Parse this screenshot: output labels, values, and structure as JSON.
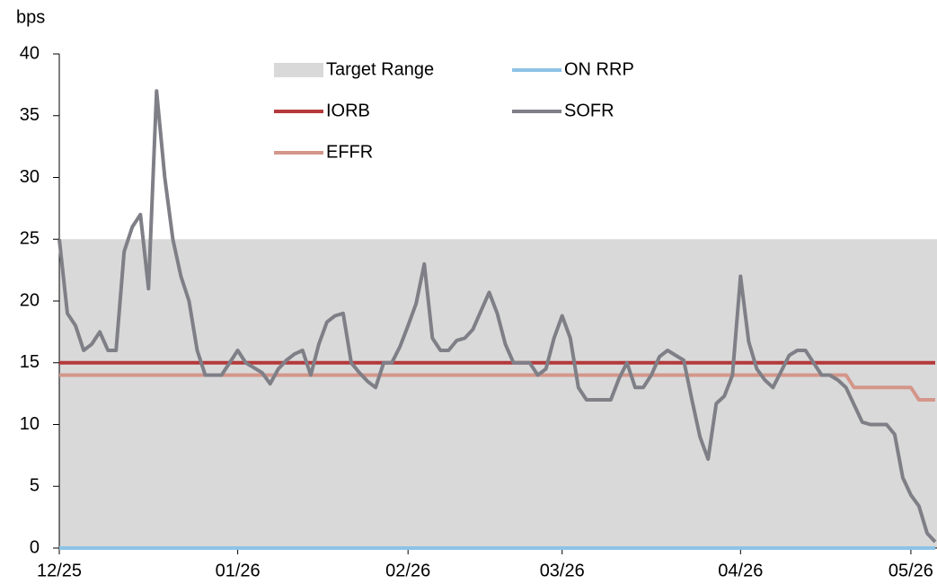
{
  "chart_data": {
    "type": "line",
    "y_label": "bps",
    "ylim": [
      0,
      40
    ],
    "yticks": [
      0,
      5,
      10,
      15,
      20,
      25,
      30,
      35,
      40
    ],
    "categories": [
      "12/25",
      null,
      null,
      null,
      null,
      null,
      null,
      null,
      null,
      null,
      null,
      null,
      null,
      null,
      null,
      null,
      null,
      null,
      null,
      null,
      null,
      null,
      "01/26",
      null,
      null,
      null,
      null,
      null,
      null,
      null,
      null,
      null,
      null,
      null,
      null,
      null,
      null,
      null,
      null,
      null,
      null,
      null,
      null,
      "02/26",
      null,
      null,
      null,
      null,
      null,
      null,
      null,
      null,
      null,
      null,
      null,
      null,
      null,
      null,
      null,
      null,
      null,
      null,
      "03/26",
      null,
      null,
      null,
      null,
      null,
      null,
      null,
      null,
      null,
      null,
      null,
      null,
      null,
      null,
      null,
      null,
      null,
      null,
      null,
      null,
      null,
      "04/26",
      null,
      null,
      null,
      null,
      null,
      null,
      null,
      null,
      null,
      null,
      null,
      null,
      null,
      null,
      null,
      null,
      null,
      null,
      null,
      null,
      "05/26",
      null,
      null,
      null
    ],
    "target_range": {
      "name": "Target Range",
      "color": "#d9d9d9",
      "low": 0,
      "high": 25
    },
    "series": [
      {
        "name": "ON RRP",
        "color": "#8ec3e6",
        "values": [
          0,
          0,
          0,
          0,
          0,
          0,
          0,
          0,
          0,
          0,
          0,
          0,
          0,
          0,
          0,
          0,
          0,
          0,
          0,
          0,
          0,
          0,
          0,
          0,
          0,
          0,
          0,
          0,
          0,
          0,
          0,
          0,
          0,
          0,
          0,
          0,
          0,
          0,
          0,
          0,
          0,
          0,
          0,
          0,
          0,
          0,
          0,
          0,
          0,
          0,
          0,
          0,
          0,
          0,
          0,
          0,
          0,
          0,
          0,
          0,
          0,
          0,
          0,
          0,
          0,
          0,
          0,
          0,
          0,
          0,
          0,
          0,
          0,
          0,
          0,
          0,
          0,
          0,
          0,
          0,
          0,
          0,
          0,
          0,
          0,
          0,
          0,
          0,
          0,
          0,
          0,
          0,
          0,
          0,
          0,
          0,
          0,
          0,
          0,
          0,
          0,
          0,
          0,
          0,
          0,
          0,
          0,
          0,
          0
        ]
      },
      {
        "name": "IORB",
        "color": "#b5393a",
        "values": [
          15,
          15,
          15,
          15,
          15,
          15,
          15,
          15,
          15,
          15,
          15,
          15,
          15,
          15,
          15,
          15,
          15,
          15,
          15,
          15,
          15,
          15,
          15,
          15,
          15,
          15,
          15,
          15,
          15,
          15,
          15,
          15,
          15,
          15,
          15,
          15,
          15,
          15,
          15,
          15,
          15,
          15,
          15,
          15,
          15,
          15,
          15,
          15,
          15,
          15,
          15,
          15,
          15,
          15,
          15,
          15,
          15,
          15,
          15,
          15,
          15,
          15,
          15,
          15,
          15,
          15,
          15,
          15,
          15,
          15,
          15,
          15,
          15,
          15,
          15,
          15,
          15,
          15,
          15,
          15,
          15,
          15,
          15,
          15,
          15,
          15,
          15,
          15,
          15,
          15,
          15,
          15,
          15,
          15,
          15,
          15,
          15,
          15,
          15,
          15,
          15,
          15,
          15,
          15,
          15,
          15,
          15,
          15,
          15
        ]
      },
      {
        "name": "EFFR",
        "color": "#d4968a",
        "values": [
          14,
          14,
          14,
          14,
          14,
          14,
          14,
          14,
          14,
          14,
          14,
          14,
          14,
          14,
          14,
          14,
          14,
          14,
          14,
          14,
          14,
          14,
          14,
          14,
          14,
          14,
          14,
          14,
          14,
          14,
          14,
          14,
          14,
          14,
          14,
          14,
          14,
          14,
          14,
          14,
          14,
          14,
          14,
          14,
          14,
          14,
          14,
          14,
          14,
          14,
          14,
          14,
          14,
          14,
          14,
          14,
          14,
          14,
          14,
          14,
          14,
          14,
          14,
          14,
          14,
          14,
          14,
          14,
          14,
          14,
          14,
          14,
          14,
          14,
          14,
          14,
          14,
          14,
          14,
          14,
          14,
          14,
          14,
          14,
          14,
          14,
          14,
          14,
          14,
          14,
          14,
          14,
          14,
          14,
          14,
          14,
          14,
          14,
          13,
          13,
          13,
          13,
          13,
          13,
          13,
          13,
          12,
          12,
          12
        ]
      },
      {
        "name": "SOFR",
        "color": "#7f7f87",
        "values": [
          25,
          19,
          18,
          16,
          16.5,
          17.5,
          16,
          16,
          24,
          26,
          27,
          21,
          37,
          30,
          25,
          22,
          20,
          16,
          14,
          14,
          14,
          15,
          16,
          15,
          14.6,
          14.2,
          13.3,
          14.5,
          15.2,
          15.7,
          16,
          14,
          16.5,
          18.3,
          18.8,
          19,
          15,
          14.2,
          13.5,
          13,
          15,
          15,
          16.3,
          18,
          19.8,
          23,
          17,
          16,
          16,
          16.8,
          17,
          17.7,
          19.2,
          20.7,
          19,
          16.5,
          15,
          15,
          15,
          14,
          14.5,
          17,
          18.8,
          17,
          13,
          12,
          12,
          12,
          12,
          13.7,
          15,
          13,
          13,
          14,
          15.5,
          16,
          15.6,
          15.2,
          12,
          9,
          7.2,
          11.7,
          12.3,
          14,
          22,
          16.7,
          14.5,
          13.6,
          13,
          14.3,
          15.6,
          16,
          16,
          15,
          14,
          14,
          13.6,
          13,
          11.6,
          10.2,
          10,
          10,
          10,
          9.2,
          5.7,
          4.3,
          3.4,
          1.2,
          0.5
        ]
      }
    ],
    "legend": "top"
  }
}
